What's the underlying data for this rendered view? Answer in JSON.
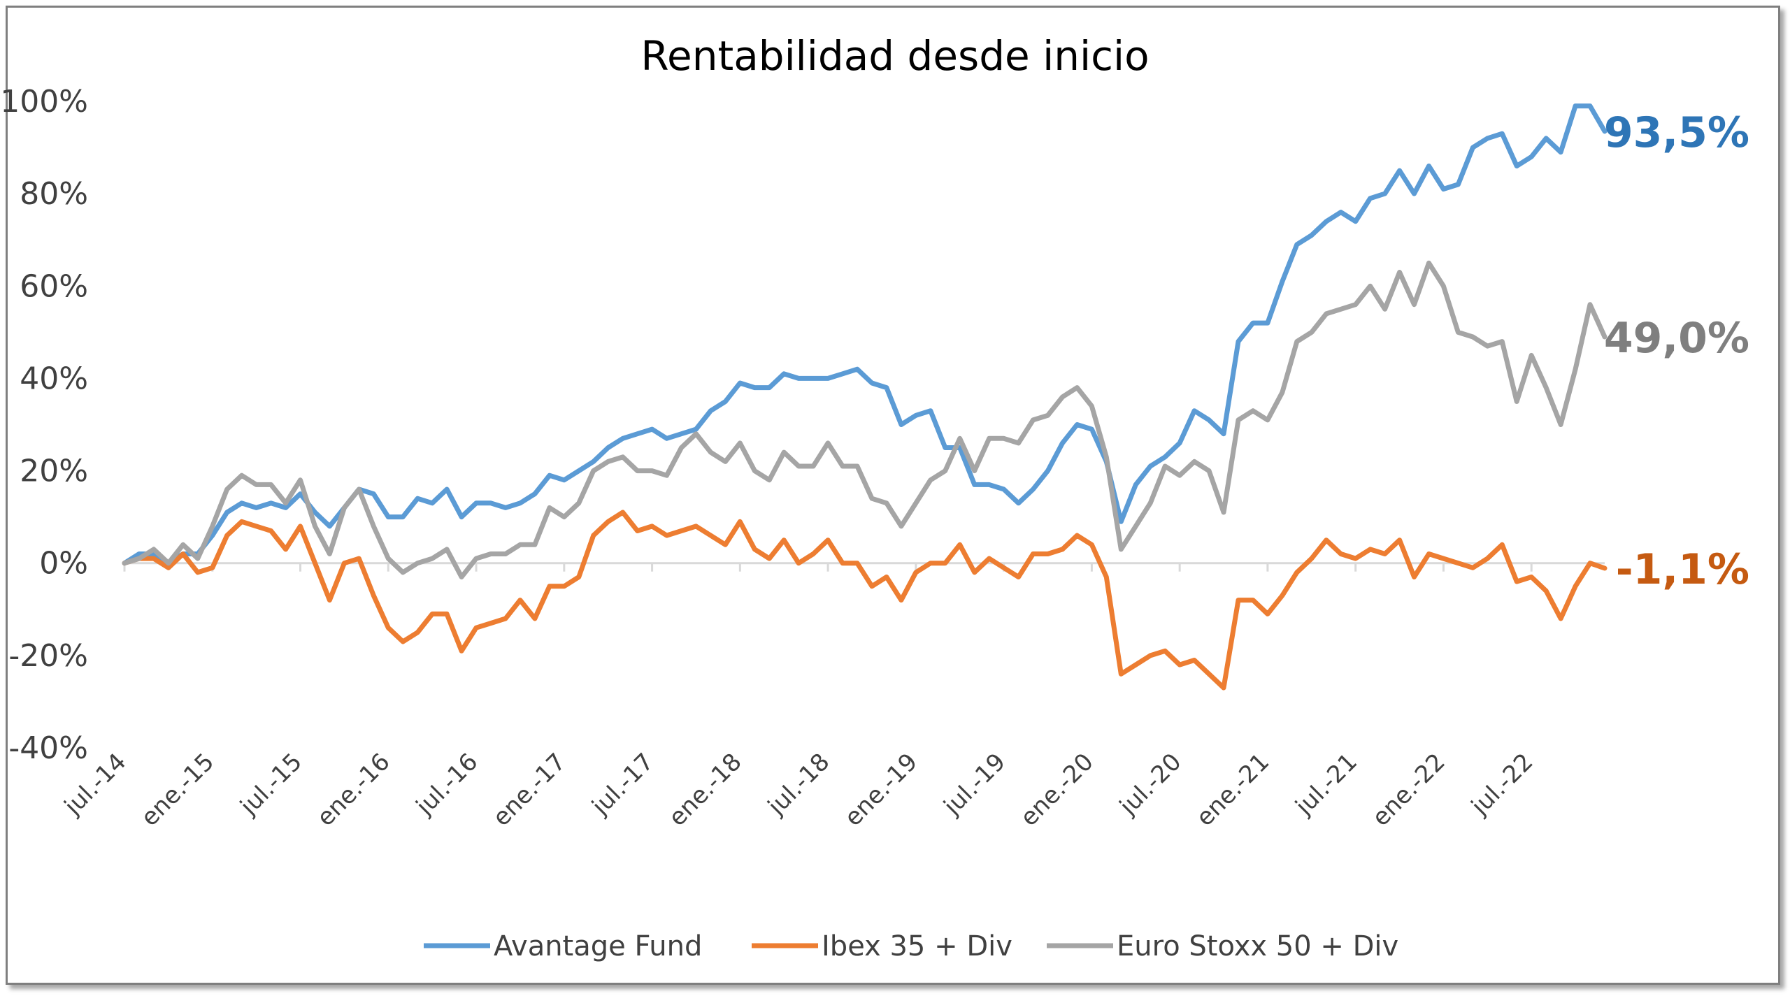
{
  "chart_data": {
    "type": "line",
    "title": "Rentabilidad desde inicio",
    "xlabel": "",
    "ylabel": "",
    "ylim": [
      -0.4,
      1.0
    ],
    "yticks": [
      1.0,
      0.8,
      0.6,
      0.4,
      0.2,
      0.0,
      -0.2,
      -0.4
    ],
    "ytick_labels": [
      "100%",
      "80%",
      "60%",
      "40%",
      "20%",
      "0%",
      "-20%",
      "-40%"
    ],
    "x_ticks": [
      {
        "label": "jul.-14",
        "date": "2014-07"
      },
      {
        "label": "ene.-15",
        "date": "2015-01"
      },
      {
        "label": "jul.-15",
        "date": "2015-07"
      },
      {
        "label": "ene.-16",
        "date": "2016-01"
      },
      {
        "label": "jul.-16",
        "date": "2016-07"
      },
      {
        "label": "ene.-17",
        "date": "2017-01"
      },
      {
        "label": "jul.-17",
        "date": "2017-07"
      },
      {
        "label": "ene.-18",
        "date": "2018-01"
      },
      {
        "label": "jul.-18",
        "date": "2018-07"
      },
      {
        "label": "ene.-19",
        "date": "2019-01"
      },
      {
        "label": "jul.-19",
        "date": "2019-07"
      },
      {
        "label": "ene.-20",
        "date": "2020-01"
      },
      {
        "label": "jul.-20",
        "date": "2020-07"
      },
      {
        "label": "ene.-21",
        "date": "2021-01"
      },
      {
        "label": "jul.-21",
        "date": "2021-07"
      },
      {
        "label": "ene.-22",
        "date": "2022-01"
      },
      {
        "label": "jul.-22",
        "date": "2022-07"
      }
    ],
    "x_start": "2014-07",
    "x_end": "2022-12",
    "grid": false,
    "legend_position": "bottom",
    "series": [
      {
        "name": "Avantage Fund",
        "color": "#5B9BD5",
        "end_label": "93,5%",
        "end_label_color": "#2E75B6",
        "values": [
          0.0,
          0.02,
          0.02,
          0.0,
          0.02,
          0.02,
          0.06,
          0.11,
          0.13,
          0.12,
          0.13,
          0.12,
          0.15,
          0.11,
          0.08,
          0.12,
          0.16,
          0.15,
          0.1,
          0.1,
          0.14,
          0.13,
          0.16,
          0.1,
          0.13,
          0.13,
          0.12,
          0.13,
          0.15,
          0.19,
          0.18,
          0.2,
          0.22,
          0.25,
          0.27,
          0.28,
          0.29,
          0.27,
          0.28,
          0.29,
          0.33,
          0.35,
          0.39,
          0.38,
          0.38,
          0.41,
          0.4,
          0.4,
          0.4,
          0.41,
          0.42,
          0.39,
          0.38,
          0.3,
          0.32,
          0.33,
          0.25,
          0.25,
          0.17,
          0.17,
          0.16,
          0.13,
          0.16,
          0.2,
          0.26,
          0.3,
          0.29,
          0.22,
          0.09,
          0.17,
          0.21,
          0.23,
          0.26,
          0.33,
          0.31,
          0.28,
          0.48,
          0.52,
          0.52,
          0.61,
          0.69,
          0.71,
          0.74,
          0.76,
          0.74,
          0.79,
          0.8,
          0.85,
          0.8,
          0.86,
          0.81,
          0.82,
          0.9,
          0.92,
          0.93,
          0.86,
          0.88,
          0.92,
          0.89,
          0.99,
          0.99,
          0.935
        ]
      },
      {
        "name": "Ibex 35 + Div",
        "color": "#ED7D31",
        "end_label": "-1,1%",
        "end_label_color": "#C55A11",
        "values": [
          0.0,
          0.01,
          0.01,
          -0.01,
          0.02,
          -0.02,
          -0.01,
          0.06,
          0.09,
          0.08,
          0.07,
          0.03,
          0.08,
          0.0,
          -0.08,
          0.0,
          0.01,
          -0.07,
          -0.14,
          -0.17,
          -0.15,
          -0.11,
          -0.11,
          -0.19,
          -0.14,
          -0.13,
          -0.12,
          -0.08,
          -0.12,
          -0.05,
          -0.05,
          -0.03,
          0.06,
          0.09,
          0.11,
          0.07,
          0.08,
          0.06,
          0.07,
          0.08,
          0.06,
          0.04,
          0.09,
          0.03,
          0.01,
          0.05,
          0.0,
          0.02,
          0.05,
          0.0,
          0.0,
          -0.05,
          -0.03,
          -0.08,
          -0.02,
          0.0,
          0.0,
          0.04,
          -0.02,
          0.01,
          -0.01,
          -0.03,
          0.02,
          0.02,
          0.03,
          0.06,
          0.04,
          -0.03,
          -0.24,
          -0.22,
          -0.2,
          -0.19,
          -0.22,
          -0.21,
          -0.24,
          -0.27,
          -0.08,
          -0.08,
          -0.11,
          -0.07,
          -0.02,
          0.01,
          0.05,
          0.02,
          0.01,
          0.03,
          0.02,
          0.05,
          -0.03,
          0.02,
          0.01,
          0.0,
          -0.01,
          0.01,
          0.04,
          -0.04,
          -0.03,
          -0.06,
          -0.12,
          -0.05,
          0.0,
          -0.011
        ]
      },
      {
        "name": "Euro Stoxx 50 + Div",
        "color": "#A5A5A5",
        "end_label": "49,0%",
        "end_label_color": "#7F7F7F",
        "values": [
          0.0,
          0.01,
          0.03,
          0.0,
          0.04,
          0.01,
          0.08,
          0.16,
          0.19,
          0.17,
          0.17,
          0.13,
          0.18,
          0.08,
          0.02,
          0.12,
          0.16,
          0.08,
          0.01,
          -0.02,
          0.0,
          0.01,
          0.03,
          -0.03,
          0.01,
          0.02,
          0.02,
          0.04,
          0.04,
          0.12,
          0.1,
          0.13,
          0.2,
          0.22,
          0.23,
          0.2,
          0.2,
          0.19,
          0.25,
          0.28,
          0.24,
          0.22,
          0.26,
          0.2,
          0.18,
          0.24,
          0.21,
          0.21,
          0.26,
          0.21,
          0.21,
          0.14,
          0.13,
          0.08,
          0.13,
          0.18,
          0.2,
          0.27,
          0.2,
          0.27,
          0.27,
          0.26,
          0.31,
          0.32,
          0.36,
          0.38,
          0.34,
          0.23,
          0.03,
          0.08,
          0.13,
          0.21,
          0.19,
          0.22,
          0.2,
          0.11,
          0.31,
          0.33,
          0.31,
          0.37,
          0.48,
          0.5,
          0.54,
          0.55,
          0.56,
          0.6,
          0.55,
          0.63,
          0.56,
          0.65,
          0.6,
          0.5,
          0.49,
          0.47,
          0.48,
          0.35,
          0.45,
          0.38,
          0.3,
          0.42,
          0.56,
          0.49
        ]
      }
    ]
  }
}
